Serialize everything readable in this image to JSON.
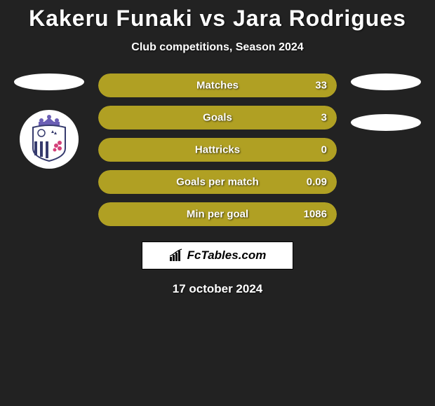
{
  "title": "Kakeru Funaki vs Jara Rodrigues",
  "subtitle": "Club competitions, Season 2024",
  "brand": "FcTables.com",
  "date": "17 october 2024",
  "colors": {
    "background": "#222222",
    "bar_fill": "#b0a023",
    "bar_bg": "#333333",
    "oval": "#ffffff",
    "brand_box_bg": "#ffffff",
    "brand_text": "#000000",
    "text": "#ffffff",
    "badge_crown": "#6b5fb5",
    "badge_stripe_dark": "#363b6e",
    "badge_flower": "#d4417a"
  },
  "stats": [
    {
      "label": "Matches",
      "value": "33",
      "fill_pct": 100
    },
    {
      "label": "Goals",
      "value": "3",
      "fill_pct": 100
    },
    {
      "label": "Hattricks",
      "value": "0",
      "fill_pct": 100
    },
    {
      "label": "Goals per match",
      "value": "0.09",
      "fill_pct": 100
    },
    {
      "label": "Min per goal",
      "value": "1086",
      "fill_pct": 100
    }
  ],
  "left_has_badge": true,
  "right_oval_count": 2
}
